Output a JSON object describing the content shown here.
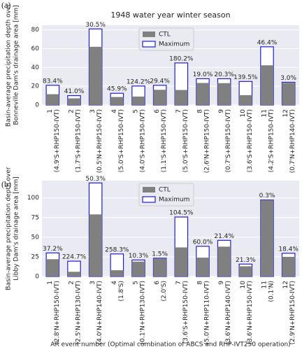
{
  "chart_data": [
    {
      "type": "bar",
      "panel_label": "(a)",
      "title": "1948 water year winter season",
      "ylabel": [
        "Basin-average precipitation depth over",
        "Bonneville Dam's drainage area [mm]"
      ],
      "categories": [
        "1",
        "2",
        "3",
        "4",
        "5",
        "6",
        "7",
        "8",
        "9",
        "10",
        "11",
        "12"
      ],
      "category_details": [
        "(4.9'S+RHP150-IVT)",
        "(1.7'S+RHP150-IVT)",
        "(0.5'N+RHP150-IVT)",
        "(5.0'S+RHP150-IVT)",
        "(4.0'S+RHP150-IVT)",
        "(1.1'S+RHP150-IVT)",
        "(5.0'S+RHP150-IVT)",
        "(2.6'N+RHP150-IVT)",
        "(0.7'S+RHP150-IVT)",
        "(3.6'S+RHP150-IVT)",
        "(4.2'S+RHP150-IVT)",
        "(0.7'N+RHP140-IVT)"
      ],
      "series": [
        {
          "name": "CTL",
          "color": "#808080",
          "values": [
            11.5,
            7.1,
            62,
            8.5,
            9,
            16.2,
            16,
            23.5,
            23.3,
            10.5,
            42.3,
            23.5
          ]
        },
        {
          "name": "Maximum",
          "color": "#1f1fc8",
          "values": [
            21,
            10,
            81,
            12.5,
            20.2,
            21,
            44.8,
            28,
            28,
            25.1,
            62,
            24.2
          ]
        }
      ],
      "annotations": [
        "83.4%",
        "41.0%",
        "30.5%",
        "45.9%",
        "124.2%",
        "29.4%",
        "180.2%",
        "19.0%",
        "20.3%",
        "139.5%",
        "46.4%",
        "3.0%"
      ],
      "ylim": [
        0,
        85
      ],
      "yticks": [
        0,
        20,
        40,
        60,
        80
      ],
      "grid": true,
      "legend": "upper center"
    },
    {
      "type": "bar",
      "panel_label": "(b)",
      "ylabel": [
        "Basin-average precipitation depth over",
        "Libby Dam's drainage area [mm]"
      ],
      "categories": [
        "1",
        "2",
        "3",
        "4",
        "5",
        "6",
        "7",
        "8",
        "9",
        "10",
        "11",
        "12"
      ],
      "category_details": [
        "(2.8'N+RHP150-IVT)",
        "(2.5'N+RHP130-IVT)",
        "(4.0'N+RHP140-IVT)",
        "(1.8'S)",
        "(0.1'N+RHP130-IVT)",
        "(2.0'S)",
        "(3.6'S+RHP150-IVT)",
        "(5.0'N+RHP110-IVT)",
        "(3.6'N+RHP140-IVT)",
        "(3.6'N+RHP150-IVT)",
        "(0.1'N)",
        "(2.9'N+RHP150-IVT)"
      ],
      "series": [
        {
          "name": "CTL",
          "color": "#808080",
          "values": [
            22,
            6,
            79,
            8,
            19,
            23,
            37,
            24,
            38,
            13,
            97,
            25
          ]
        },
        {
          "name": "Maximum",
          "color": "#1f1fc8",
          "values": [
            30,
            19.5,
            119,
            28.7,
            21,
            23.3,
            75.7,
            38.4,
            46,
            15.8,
            97.3,
            29.6
          ]
        }
      ],
      "annotations": [
        "37.2%",
        "224.7%",
        "50.3%",
        "258.3%",
        "10.3%",
        "1.5%",
        "104.5%",
        "60.0%",
        "21.4%",
        "21.3%",
        "0.3%",
        "18.4%"
      ],
      "ylim": [
        0,
        122
      ],
      "yticks": [
        0,
        25,
        50,
        75,
        100
      ],
      "grid": true,
      "legend": "upper center",
      "xlabel": "AR event number (Optimal combination of ABCS and RHP-IVT250 operation)"
    }
  ]
}
